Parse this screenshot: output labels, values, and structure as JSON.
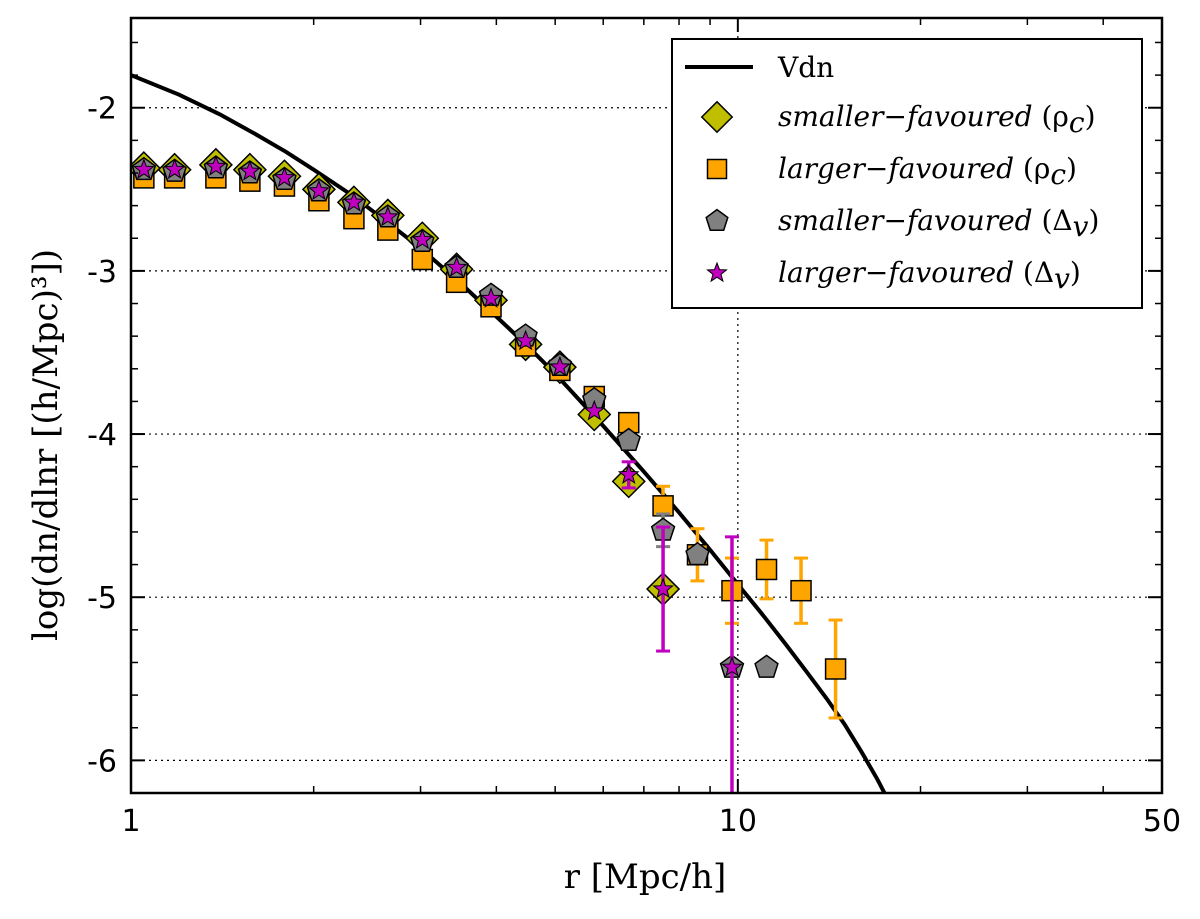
{
  "chart_data": {
    "type": "scatter",
    "xlabel": "r [Mpc/h]",
    "ylabel": "log(dn/dlnr [(h/Mpc)³])",
    "xscale": "log",
    "xlim": [
      1,
      50
    ],
    "ylim": [
      -6.2,
      -1.45
    ],
    "xticks": [
      {
        "value": 1,
        "label": "1"
      },
      {
        "value": 10,
        "label": "10"
      },
      {
        "value": 50,
        "label": "50"
      }
    ],
    "yticks": [
      {
        "value": -2,
        "label": "-2"
      },
      {
        "value": -3,
        "label": "-3"
      },
      {
        "value": -4,
        "label": "-4"
      },
      {
        "value": -5,
        "label": "-5"
      },
      {
        "value": -6,
        "label": "-6"
      }
    ],
    "grid": true,
    "legend_position": "top-right",
    "series": [
      {
        "name": "Vdn",
        "kind": "line",
        "color": "#000000",
        "x": [
          1.0,
          1.2,
          1.4,
          1.6,
          1.8,
          2.0,
          2.3,
          2.6,
          3.0,
          3.5,
          4.0,
          4.5,
          5.0,
          6.0,
          7.0,
          8.0,
          9.0,
          10.0,
          11.0,
          12.0,
          13.0,
          14.0,
          15.0,
          16.0,
          17.0,
          17.5
        ],
        "y": [
          -1.8,
          -1.92,
          -2.04,
          -2.16,
          -2.27,
          -2.38,
          -2.53,
          -2.68,
          -2.86,
          -3.08,
          -3.28,
          -3.46,
          -3.63,
          -3.95,
          -4.23,
          -4.48,
          -4.71,
          -4.92,
          -5.11,
          -5.29,
          -5.46,
          -5.62,
          -5.78,
          -5.95,
          -6.12,
          -6.21
        ]
      },
      {
        "name": "smaller−favoured (ρ_c)",
        "label_main": "smaller−favoured",
        "label_sub": "(ρ",
        "label_subscript": "c",
        "label_close": ")",
        "kind": "marker",
        "marker": "diamond",
        "color": "#bfbf00",
        "x": [
          1.05,
          1.18,
          1.38,
          1.57,
          1.79,
          2.04,
          2.33,
          2.65,
          3.02,
          3.44,
          3.92,
          4.47,
          5.09,
          5.8,
          6.61,
          7.53
        ],
        "y": [
          -2.37,
          -2.38,
          -2.35,
          -2.38,
          -2.42,
          -2.5,
          -2.58,
          -2.66,
          -2.8,
          -2.99,
          -3.18,
          -3.45,
          -3.59,
          -3.88,
          -4.29,
          -4.95
        ],
        "yerr": [
          0,
          0,
          0,
          0,
          0,
          0,
          0,
          0,
          0,
          0,
          0,
          0,
          0,
          0,
          0,
          0
        ]
      },
      {
        "name": "larger−favoured (ρ_c)",
        "label_main": "larger−favoured",
        "label_sub": "(ρ",
        "label_subscript": "c",
        "label_close": ")",
        "kind": "marker",
        "marker": "square",
        "color": "#ffa500",
        "x": [
          1.05,
          1.18,
          1.38,
          1.57,
          1.79,
          2.04,
          2.33,
          2.65,
          3.02,
          3.44,
          3.92,
          4.47,
          5.09,
          5.8,
          6.61,
          7.53,
          8.58,
          9.78,
          11.15,
          12.71,
          14.49
        ],
        "y": [
          -2.43,
          -2.43,
          -2.43,
          -2.45,
          -2.48,
          -2.57,
          -2.68,
          -2.75,
          -2.93,
          -3.07,
          -3.22,
          -3.46,
          -3.61,
          -3.77,
          -3.93,
          -4.44,
          -4.74,
          -4.96,
          -4.83,
          -4.96,
          -5.44
        ],
        "yerr": [
          0,
          0,
          0,
          0,
          0,
          0,
          0,
          0,
          0,
          0,
          0,
          0,
          0,
          0,
          0,
          0.12,
          0.16,
          0.2,
          0.18,
          0.2,
          0.3
        ]
      },
      {
        "name": "smaller−favoured (Δ_v)",
        "label_main": "smaller−favoured",
        "label_sub": "(Δ",
        "label_subscript": "v",
        "label_close": ")",
        "kind": "marker",
        "marker": "pentagon",
        "color": "#808080",
        "x": [
          1.05,
          1.18,
          1.38,
          1.57,
          1.79,
          2.04,
          2.33,
          2.65,
          3.02,
          3.44,
          3.92,
          4.47,
          5.09,
          5.8,
          6.61,
          7.53,
          8.58,
          9.78,
          11.15
        ],
        "y": [
          -2.38,
          -2.39,
          -2.37,
          -2.4,
          -2.44,
          -2.51,
          -2.59,
          -2.67,
          -2.82,
          -2.98,
          -3.15,
          -3.4,
          -3.58,
          -3.79,
          -4.04,
          -4.59,
          -4.74,
          -5.43,
          -5.43
        ],
        "yerr": [
          0,
          0,
          0,
          0,
          0,
          0,
          0,
          0,
          0,
          0,
          0,
          0,
          0,
          0,
          0,
          0.1,
          0,
          0,
          0
        ]
      },
      {
        "name": "larger−favoured (Δ_v)",
        "label_main": "larger−favoured",
        "label_sub": "(Δ",
        "label_subscript": "v",
        "label_close": ")",
        "kind": "marker",
        "marker": "star",
        "color": "#bf00bf",
        "x": [
          1.05,
          1.18,
          1.38,
          1.57,
          1.79,
          2.04,
          2.33,
          2.65,
          3.02,
          3.44,
          3.92,
          4.47,
          5.09,
          5.8,
          6.61,
          7.53,
          9.78
        ],
        "y": [
          -2.38,
          -2.38,
          -2.36,
          -2.39,
          -2.43,
          -2.51,
          -2.58,
          -2.67,
          -2.81,
          -2.98,
          -3.17,
          -3.43,
          -3.59,
          -3.86,
          -4.25,
          -4.95,
          -5.43
        ],
        "yerr": [
          0,
          0,
          0,
          0,
          0,
          0,
          0,
          0,
          0,
          0,
          0,
          0,
          0,
          0,
          0.08,
          0.38,
          0.8
        ]
      }
    ]
  }
}
